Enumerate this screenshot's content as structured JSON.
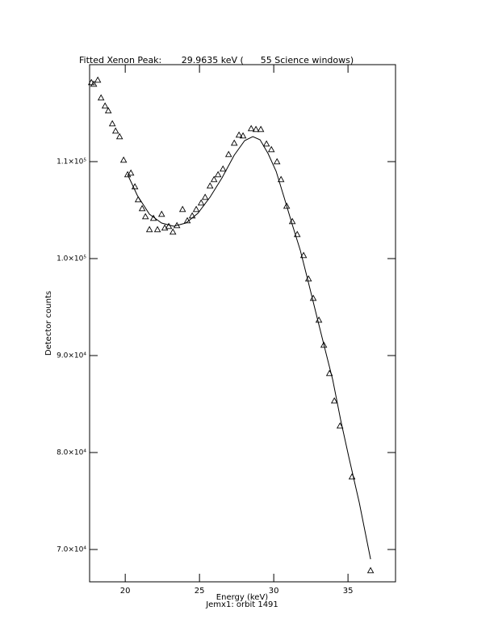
{
  "chart_data": {
    "type": "scatter",
    "title": "Fitted Xenon Peak:       29.9635 keV (      55 Science windows)",
    "xlabel": "Energy (keV)",
    "subtitle": "Jemx1: orbit 1491",
    "ylabel": "Detector counts",
    "xlim": [
      17.6,
      38.2
    ],
    "xticks": [
      20,
      25,
      30,
      35
    ],
    "ylim": [
      66667,
      120000
    ],
    "yticks": [
      {
        "value": 70000,
        "label": "7.0×10⁴"
      },
      {
        "value": 80000,
        "label": "8.0×10⁴"
      },
      {
        "value": 90000,
        "label": "9.0×10⁴"
      },
      {
        "value": 100000,
        "label": "1.0×10⁵"
      },
      {
        "value": 110000,
        "label": "1.1×10⁵"
      }
    ],
    "color": "#000000",
    "points": {
      "x": [
        17.72,
        17.88,
        18.15,
        18.37,
        18.64,
        18.86,
        19.13,
        19.35,
        19.62,
        19.89,
        20.16,
        20.38,
        20.65,
        20.87,
        21.14,
        21.36,
        21.63,
        21.9,
        22.17,
        22.45,
        22.66,
        22.93,
        23.21,
        23.48,
        23.86,
        24.18,
        24.51,
        24.78,
        25.11,
        25.38,
        25.71,
        25.98,
        26.25,
        26.58,
        26.96,
        27.34,
        27.66,
        27.93,
        28.48,
        28.8,
        29.13,
        29.51,
        29.84,
        30.22,
        30.49,
        30.87,
        31.25,
        31.58,
        32.01,
        32.34,
        32.66,
        33.04,
        33.37,
        33.75,
        34.08,
        34.46,
        35.27,
        36.52
      ],
      "values": [
        118167,
        118000,
        118417,
        116583,
        115750,
        115250,
        113917,
        113167,
        112583,
        110167,
        108667,
        108833,
        107417,
        106083,
        105167,
        104333,
        103000,
        104167,
        103000,
        104583,
        103167,
        103333,
        102750,
        103417,
        105083,
        103917,
        104417,
        105083,
        105750,
        106333,
        107500,
        108167,
        108667,
        109250,
        110750,
        111917,
        112750,
        112667,
        113417,
        113333,
        113333,
        111833,
        111250,
        110000,
        108167,
        105417,
        103833,
        102500,
        100333,
        97917,
        95917,
        93667,
        91083,
        88167,
        85333,
        82750,
        77500,
        67833
      ]
    },
    "fit": {
      "x": [
        20.16,
        20.82,
        21.63,
        22.45,
        23.26,
        24.08,
        24.89,
        25.71,
        26.52,
        27.34,
        28.04,
        28.59,
        29.08,
        29.62,
        30.16,
        30.71,
        31.25,
        31.79,
        32.34,
        32.88,
        33.42,
        33.97,
        34.51,
        35.05,
        35.76,
        36.52
      ],
      "values": [
        108667,
        106500,
        104583,
        103667,
        103333,
        103667,
        104667,
        106333,
        108333,
        110667,
        112167,
        112583,
        112250,
        110833,
        109000,
        106250,
        103500,
        100833,
        97500,
        94167,
        90833,
        87500,
        83333,
        79583,
        74833,
        69000
      ]
    }
  }
}
